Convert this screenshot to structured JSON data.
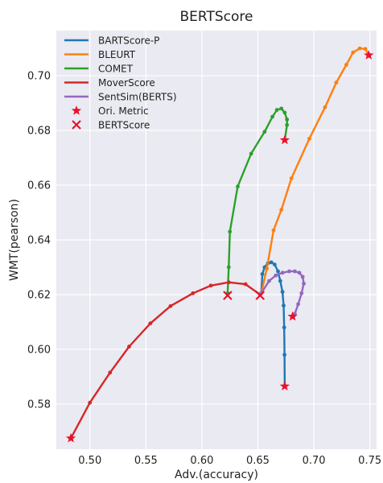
{
  "chart_data": {
    "type": "line",
    "title": "BERTScore",
    "xlabel": "Adv.(accuracy)",
    "ylabel": "WMT(pearson)",
    "xlim": [
      0.47,
      0.756
    ],
    "ylim": [
      0.5635,
      0.7165
    ],
    "xticks": [
      0.5,
      0.55,
      0.6,
      0.65,
      0.7,
      0.75
    ],
    "xtick_labels": [
      "0.50",
      "0.55",
      "0.60",
      "0.65",
      "0.70",
      "0.75"
    ],
    "yticks": [
      0.58,
      0.6,
      0.62,
      0.64,
      0.66,
      0.68,
      0.7
    ],
    "ytick_labels": [
      "0.58",
      "0.60",
      "0.62",
      "0.64",
      "0.66",
      "0.68",
      "0.70"
    ],
    "grid": true,
    "legend_position": "top-left",
    "series": [
      {
        "name": "BARTScore-P",
        "color": "#1f77b4",
        "points": [
          [
            0.653,
            0.6205
          ],
          [
            0.654,
            0.6275
          ],
          [
            0.656,
            0.63
          ],
          [
            0.659,
            0.6315
          ],
          [
            0.662,
            0.6318
          ],
          [
            0.665,
            0.631
          ],
          [
            0.668,
            0.6285
          ],
          [
            0.67,
            0.625
          ],
          [
            0.672,
            0.621
          ],
          [
            0.673,
            0.616
          ],
          [
            0.6735,
            0.608
          ],
          [
            0.6738,
            0.598
          ],
          [
            0.674,
            0.5865
          ]
        ]
      },
      {
        "name": "BLEURT",
        "color": "#ff7f0e",
        "points": [
          [
            0.653,
            0.6205
          ],
          [
            0.658,
            0.6295
          ],
          [
            0.664,
            0.6435
          ],
          [
            0.671,
            0.651
          ],
          [
            0.68,
            0.6625
          ],
          [
            0.696,
            0.677
          ],
          [
            0.71,
            0.6885
          ],
          [
            0.72,
            0.6975
          ],
          [
            0.729,
            0.704
          ],
          [
            0.735,
            0.7085
          ],
          [
            0.741,
            0.71
          ],
          [
            0.746,
            0.7098
          ],
          [
            0.749,
            0.7075
          ]
        ]
      },
      {
        "name": "COMET",
        "color": "#2ca02c",
        "points": [
          [
            0.623,
            0.6205
          ],
          [
            0.624,
            0.63
          ],
          [
            0.625,
            0.643
          ],
          [
            0.632,
            0.6595
          ],
          [
            0.644,
            0.6715
          ],
          [
            0.656,
            0.6795
          ],
          [
            0.663,
            0.685
          ],
          [
            0.667,
            0.6875
          ],
          [
            0.671,
            0.688
          ],
          [
            0.674,
            0.6865
          ],
          [
            0.676,
            0.684
          ],
          [
            0.676,
            0.682
          ],
          [
            0.674,
            0.6765
          ]
        ]
      },
      {
        "name": "MoverScore",
        "color": "#d62728",
        "points": [
          [
            0.483,
            0.5675
          ],
          [
            0.5,
            0.5805
          ],
          [
            0.518,
            0.5915
          ],
          [
            0.535,
            0.601
          ],
          [
            0.554,
            0.6095
          ],
          [
            0.572,
            0.6158
          ],
          [
            0.592,
            0.6205
          ],
          [
            0.608,
            0.6233
          ],
          [
            0.624,
            0.6245
          ],
          [
            0.639,
            0.6238
          ],
          [
            0.652,
            0.62
          ]
        ]
      },
      {
        "name": "SentSim(BERTS)",
        "color": "#9467bd",
        "points": [
          [
            0.653,
            0.6205
          ],
          [
            0.66,
            0.625
          ],
          [
            0.666,
            0.627
          ],
          [
            0.672,
            0.628
          ],
          [
            0.678,
            0.6285
          ],
          [
            0.683,
            0.6285
          ],
          [
            0.687,
            0.628
          ],
          [
            0.69,
            0.6265
          ],
          [
            0.691,
            0.624
          ],
          [
            0.689,
            0.6205
          ],
          [
            0.686,
            0.6165
          ],
          [
            0.683,
            0.613
          ],
          [
            0.681,
            0.612
          ]
        ]
      }
    ],
    "markers": [
      {
        "name": "Ori. Metric",
        "symbol": "star",
        "color": "#e8112d",
        "points": [
          [
            0.674,
            0.5865
          ],
          [
            0.749,
            0.7075
          ],
          [
            0.674,
            0.6765
          ],
          [
            0.483,
            0.5675
          ],
          [
            0.681,
            0.612
          ]
        ]
      },
      {
        "name": "BERTScore",
        "symbol": "x",
        "color": "#e8112d",
        "points": [
          [
            0.623,
            0.6197
          ],
          [
            0.652,
            0.6197
          ]
        ]
      }
    ]
  }
}
